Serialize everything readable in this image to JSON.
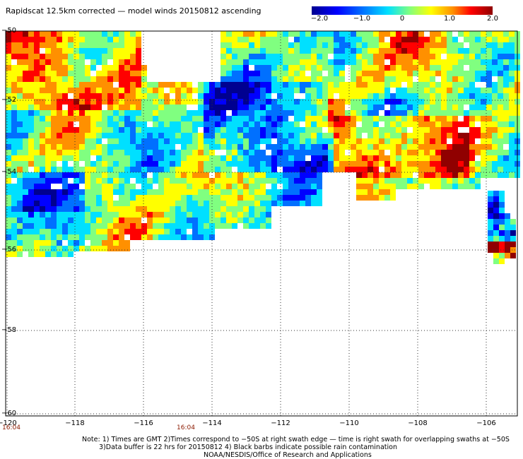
{
  "title": "Rapidscat 12.5km corrected — model winds 20150812 ascending",
  "colorbar": {
    "ticks": [
      "−2.0",
      "−1.0",
      "0",
      "1.0",
      "2.0"
    ],
    "range": [
      -2.0,
      2.0
    ],
    "colors": [
      "#000090",
      "#0000ff",
      "#0070ff",
      "#00e0ff",
      "#80ff80",
      "#ffff00",
      "#ff9000",
      "#ff0000",
      "#900000"
    ]
  },
  "axes": {
    "lat_labels": [
      "−50",
      "−52",
      "−54",
      "−56",
      "−58",
      "−60"
    ],
    "lon_labels": [
      "−120",
      "−118",
      "−116",
      "−114",
      "−112",
      "−110",
      "−108",
      "−106"
    ],
    "lat_range": [
      -60,
      -50
    ],
    "lon_range": [
      -120,
      -105
    ]
  },
  "times": [
    "16:04",
    "16:04"
  ],
  "notes": [
    "Note: 1) Times are GMT 2)Times correspond to −50S at right swath edge — time is right swath for overlapping swaths at −50S",
    "3)Data buffer is 22 hrs for 20150812 4) Black barbs indicate possible rain contamination",
    "NOAA/NESDIS/Office of Research and Applications"
  ]
}
